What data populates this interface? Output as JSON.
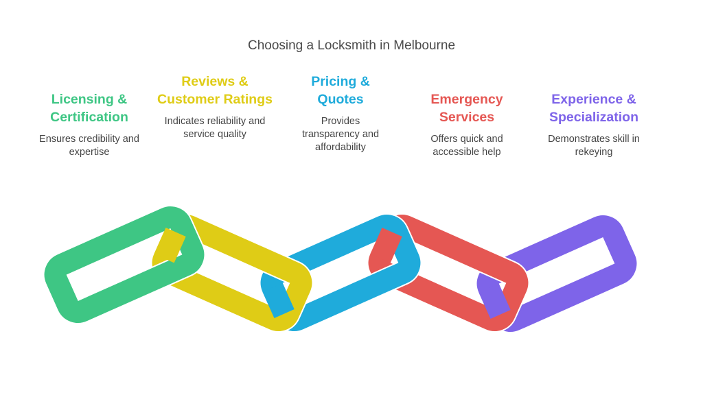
{
  "title": "Choosing a Locksmith in Melbourne",
  "items": [
    {
      "heading": "Licensing & Certification",
      "text": "Ensures credibility and expertise",
      "color": "#3ec684"
    },
    {
      "heading": "Reviews & Customer Ratings",
      "text": "Indicates reliability and service quality",
      "color": "#dfcc16"
    },
    {
      "heading": "Pricing & Quotes",
      "text": "Provides transparency and affordability",
      "color": "#1fabdb"
    },
    {
      "heading": "Emergency Services",
      "text": "Offers quick and accessible help",
      "color": "#e55753"
    },
    {
      "heading": "Experience & Specialization",
      "text": "Demonstrates skill in rekeying",
      "color": "#7e64e9"
    }
  ]
}
